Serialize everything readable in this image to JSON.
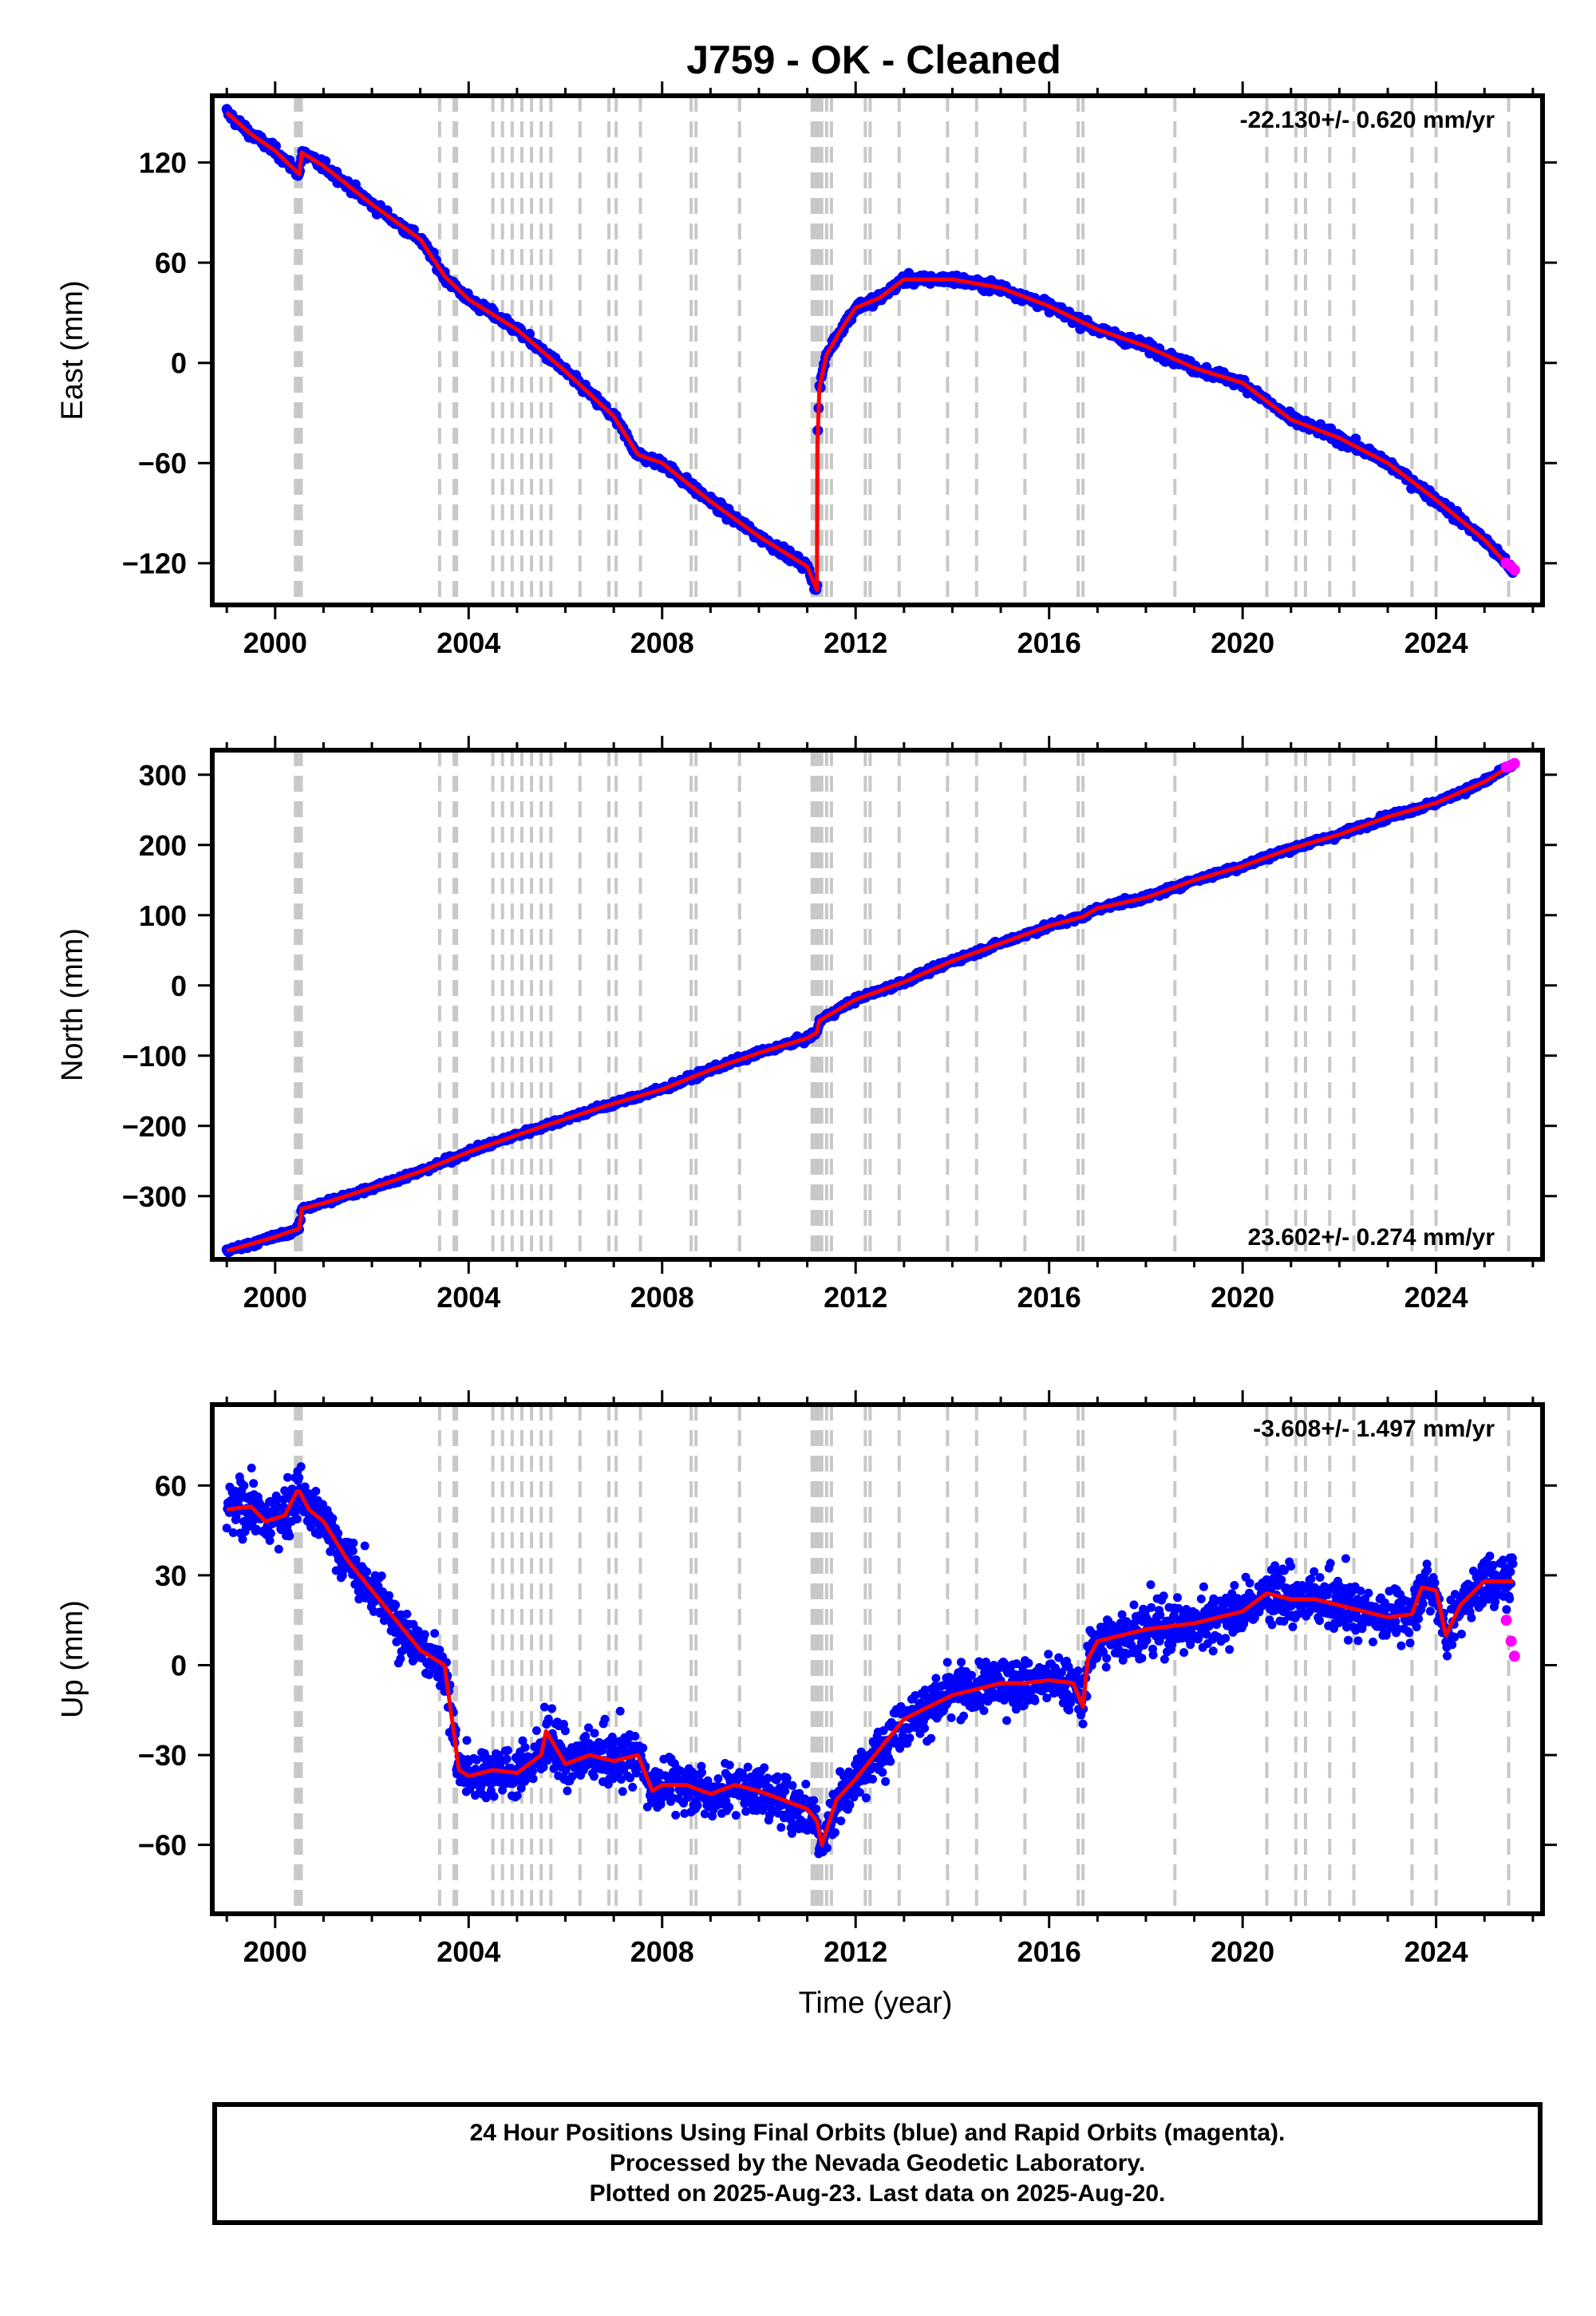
{
  "title": "J759  - OK - Cleaned",
  "xlabel": "Time (year)",
  "footer": {
    "line1": "24 Hour Positions Using Final Orbits (blue) and Rapid Orbits (magenta).",
    "line2": "Processed by the Nevada Geodetic Laboratory.",
    "line3": "Plotted on 2025-Aug-23. Last data on 2025-Aug-20."
  },
  "colors": {
    "final_orbits": "#0000ff",
    "rapid_orbits": "#ff00ff",
    "model": "#ff0000",
    "equipment_change_lines": "#c8c8c8"
  },
  "chart_data": [
    {
      "type": "scatter",
      "name": "east",
      "ylabel": "East (mm)",
      "rate_label": "-22.130+/- 0.620 mm/yr",
      "rate_label_position": "top-right",
      "xlim": [
        1998.7,
        2026.2
      ],
      "ylim": [
        -145,
        160
      ],
      "x_ticks": [
        2000,
        2004,
        2008,
        2012,
        2016,
        2020,
        2024
      ],
      "y_ticks": [
        120,
        60,
        0,
        -60,
        -120
      ],
      "x_tick_labels": [
        "2000",
        "2004",
        "2008",
        "2012",
        "2016",
        "2020",
        "2024"
      ],
      "y_tick_labels": [
        "120",
        "60",
        "0",
        "−60",
        "−120"
      ],
      "model": {
        "x": [
          1999.0,
          1999.5,
          2000.0,
          2000.5,
          2000.55,
          2001.0,
          2002.0,
          2003.0,
          2003.5,
          2004.0,
          2005.0,
          2006.0,
          2007.0,
          2007.5,
          2008.0,
          2009.0,
          2010.0,
          2011.0,
          2011.2,
          2011.21,
          2011.25,
          2011.4,
          2011.7,
          2012.0,
          2012.5,
          2013.0,
          2014.0,
          2015.0,
          2016.0,
          2017.0,
          2018.0,
          2019.0,
          2020.0,
          2021.0,
          2022.0,
          2023.0,
          2024.0,
          2025.0,
          2025.6
        ],
        "y": [
          150,
          137,
          127,
          113,
          126,
          118,
          95,
          74,
          52,
          38,
          20,
          -5,
          -32,
          -55,
          -60,
          -83,
          -104,
          -122,
          -136,
          -50,
          -15,
          5,
          20,
          33,
          39,
          50,
          50,
          45,
          34,
          20,
          10,
          -3,
          -12,
          -34,
          -45,
          -60,
          -82,
          -106,
          -125
        ]
      },
      "equipment_changes": [
        2000.42,
        2000.45,
        2000.48,
        2000.51,
        2000.54,
        2003.4,
        2003.7,
        2003.75,
        2004.5,
        2004.7,
        2004.9,
        2005.1,
        2005.3,
        2005.5,
        2005.7,
        2006.3,
        2006.9,
        2007.05,
        2007.55,
        2008.6,
        2008.7,
        2009.6,
        2011.1,
        2011.15,
        2011.2,
        2011.25,
        2011.3,
        2011.4,
        2011.5,
        2012.2,
        2012.3,
        2012.9,
        2013.9,
        2014.5,
        2015.5,
        2016.6,
        2016.7,
        2018.6,
        2020.5,
        2021.1,
        2021.3,
        2021.8,
        2022.3,
        2023.5,
        2024.0,
        2025.5
      ],
      "rapid_orbits": {
        "x": [
          2025.45,
          2025.55,
          2025.62
        ],
        "y": [
          -120,
          -122,
          -124
        ]
      }
    },
    {
      "type": "scatter",
      "name": "north",
      "ylabel": "North (mm)",
      "rate_label": "23.602+/- 0.274 mm/yr",
      "rate_label_position": "bottom-right",
      "xlim": [
        1998.7,
        2026.2
      ],
      "ylim": [
        -390,
        335
      ],
      "x_ticks": [
        2000,
        2004,
        2008,
        2012,
        2016,
        2020,
        2024
      ],
      "y_ticks": [
        300,
        200,
        100,
        0,
        -100,
        -200,
        -300
      ],
      "x_tick_labels": [
        "2000",
        "2004",
        "2008",
        "2012",
        "2016",
        "2020",
        "2024"
      ],
      "y_tick_labels": [
        "300",
        "200",
        "100",
        "0",
        "−100",
        "−200",
        "−300"
      ],
      "model": {
        "x": [
          1999.0,
          2000.0,
          2000.5,
          2000.55,
          2001.0,
          2002.0,
          2003.0,
          2004.0,
          2005.0,
          2006.0,
          2007.0,
          2008.0,
          2009.0,
          2010.0,
          2011.0,
          2011.2,
          2011.25,
          2012.0,
          2013.0,
          2014.0,
          2015.0,
          2016.0,
          2016.7,
          2017.0,
          2018.0,
          2019.0,
          2020.0,
          2021.0,
          2022.0,
          2023.0,
          2024.0,
          2025.0,
          2025.6
        ],
        "y": [
          -378,
          -358,
          -346,
          -318,
          -310,
          -288,
          -265,
          -237,
          -213,
          -190,
          -168,
          -148,
          -120,
          -96,
          -75,
          -67,
          -50,
          -20,
          5,
          35,
          60,
          85,
          98,
          110,
          125,
          150,
          170,
          195,
          215,
          240,
          260,
          290,
          315
        ]
      },
      "equipment_changes": [
        2000.42,
        2000.45,
        2000.48,
        2000.51,
        2000.54,
        2003.4,
        2003.7,
        2003.75,
        2004.5,
        2004.7,
        2004.9,
        2005.1,
        2005.3,
        2005.5,
        2005.7,
        2006.3,
        2006.9,
        2007.05,
        2007.55,
        2008.6,
        2008.7,
        2009.6,
        2011.1,
        2011.15,
        2011.2,
        2011.25,
        2011.3,
        2011.4,
        2011.5,
        2012.2,
        2012.3,
        2012.9,
        2013.9,
        2014.5,
        2015.5,
        2016.6,
        2016.7,
        2018.6,
        2020.5,
        2021.1,
        2021.3,
        2021.8,
        2022.3,
        2023.5,
        2024.0,
        2025.5
      ],
      "rapid_orbits": {
        "x": [
          2025.45,
          2025.55,
          2025.62
        ],
        "y": [
          311,
          313,
          316
        ]
      }
    },
    {
      "type": "scatter",
      "name": "up",
      "ylabel": "Up (mm)",
      "rate_label": "-3.608+/- 1.497 mm/yr",
      "rate_label_position": "top-right",
      "xlim": [
        1998.7,
        2026.2
      ],
      "ylim": [
        -83,
        87
      ],
      "x_ticks": [
        2000,
        2004,
        2008,
        2012,
        2016,
        2020,
        2024
      ],
      "y_ticks": [
        60,
        30,
        0,
        -30,
        -60
      ],
      "x_tick_labels": [
        "2000",
        "2004",
        "2008",
        "2012",
        "2016",
        "2020",
        "2024"
      ],
      "y_tick_labels": [
        "60",
        "30",
        "0",
        "−30",
        "−60"
      ],
      "model": {
        "x": [
          1999.0,
          1999.5,
          1999.8,
          2000.2,
          2000.45,
          2000.5,
          2000.7,
          2001.0,
          2001.5,
          2002.0,
          2002.5,
          2003.0,
          2003.5,
          2003.8,
          2004.0,
          2004.5,
          2005.0,
          2005.5,
          2005.6,
          2006.0,
          2006.5,
          2007.0,
          2007.5,
          2007.8,
          2008.0,
          2008.5,
          2009.0,
          2009.5,
          2010.0,
          2010.5,
          2011.0,
          2011.2,
          2011.3,
          2011.6,
          2012.0,
          2012.5,
          2013.0,
          2013.5,
          2014.0,
          2014.5,
          2015.0,
          2015.5,
          2016.0,
          2016.5,
          2016.7,
          2016.8,
          2017.0,
          2018.0,
          2019.0,
          2020.0,
          2020.5,
          2021.0,
          2021.5,
          2022.0,
          2022.5,
          2023.0,
          2023.5,
          2023.7,
          2024.0,
          2024.2,
          2024.5,
          2025.0,
          2025.6
        ],
        "y": [
          52,
          53,
          48,
          50,
          58,
          58,
          52,
          48,
          35,
          25,
          15,
          5,
          0,
          -35,
          -37,
          -35,
          -36,
          -30,
          -22,
          -33,
          -30,
          -32,
          -30,
          -42,
          -40,
          -40,
          -43,
          -40,
          -42,
          -45,
          -48,
          -52,
          -60,
          -45,
          -38,
          -28,
          -18,
          -14,
          -10,
          -8,
          -6,
          -6,
          -5,
          -6,
          -14,
          2,
          8,
          12,
          14,
          18,
          24,
          22,
          22,
          20,
          18,
          16,
          17,
          26,
          25,
          10,
          20,
          28,
          28
        ]
      },
      "equipment_changes": [
        2000.42,
        2000.45,
        2000.48,
        2000.51,
        2000.54,
        2003.4,
        2003.7,
        2003.75,
        2004.5,
        2004.7,
        2004.9,
        2005.1,
        2005.3,
        2005.5,
        2005.7,
        2006.3,
        2006.9,
        2007.05,
        2007.55,
        2008.6,
        2008.7,
        2009.6,
        2011.1,
        2011.15,
        2011.2,
        2011.25,
        2011.3,
        2011.4,
        2011.5,
        2012.2,
        2012.3,
        2012.9,
        2013.9,
        2014.5,
        2015.5,
        2016.6,
        2016.7,
        2018.6,
        2020.5,
        2021.1,
        2021.3,
        2021.8,
        2022.3,
        2023.5,
        2024.0,
        2025.5
      ],
      "rapid_orbits": {
        "x": [
          2025.45,
          2025.55,
          2025.62
        ],
        "y": [
          15,
          8,
          3
        ]
      }
    }
  ]
}
